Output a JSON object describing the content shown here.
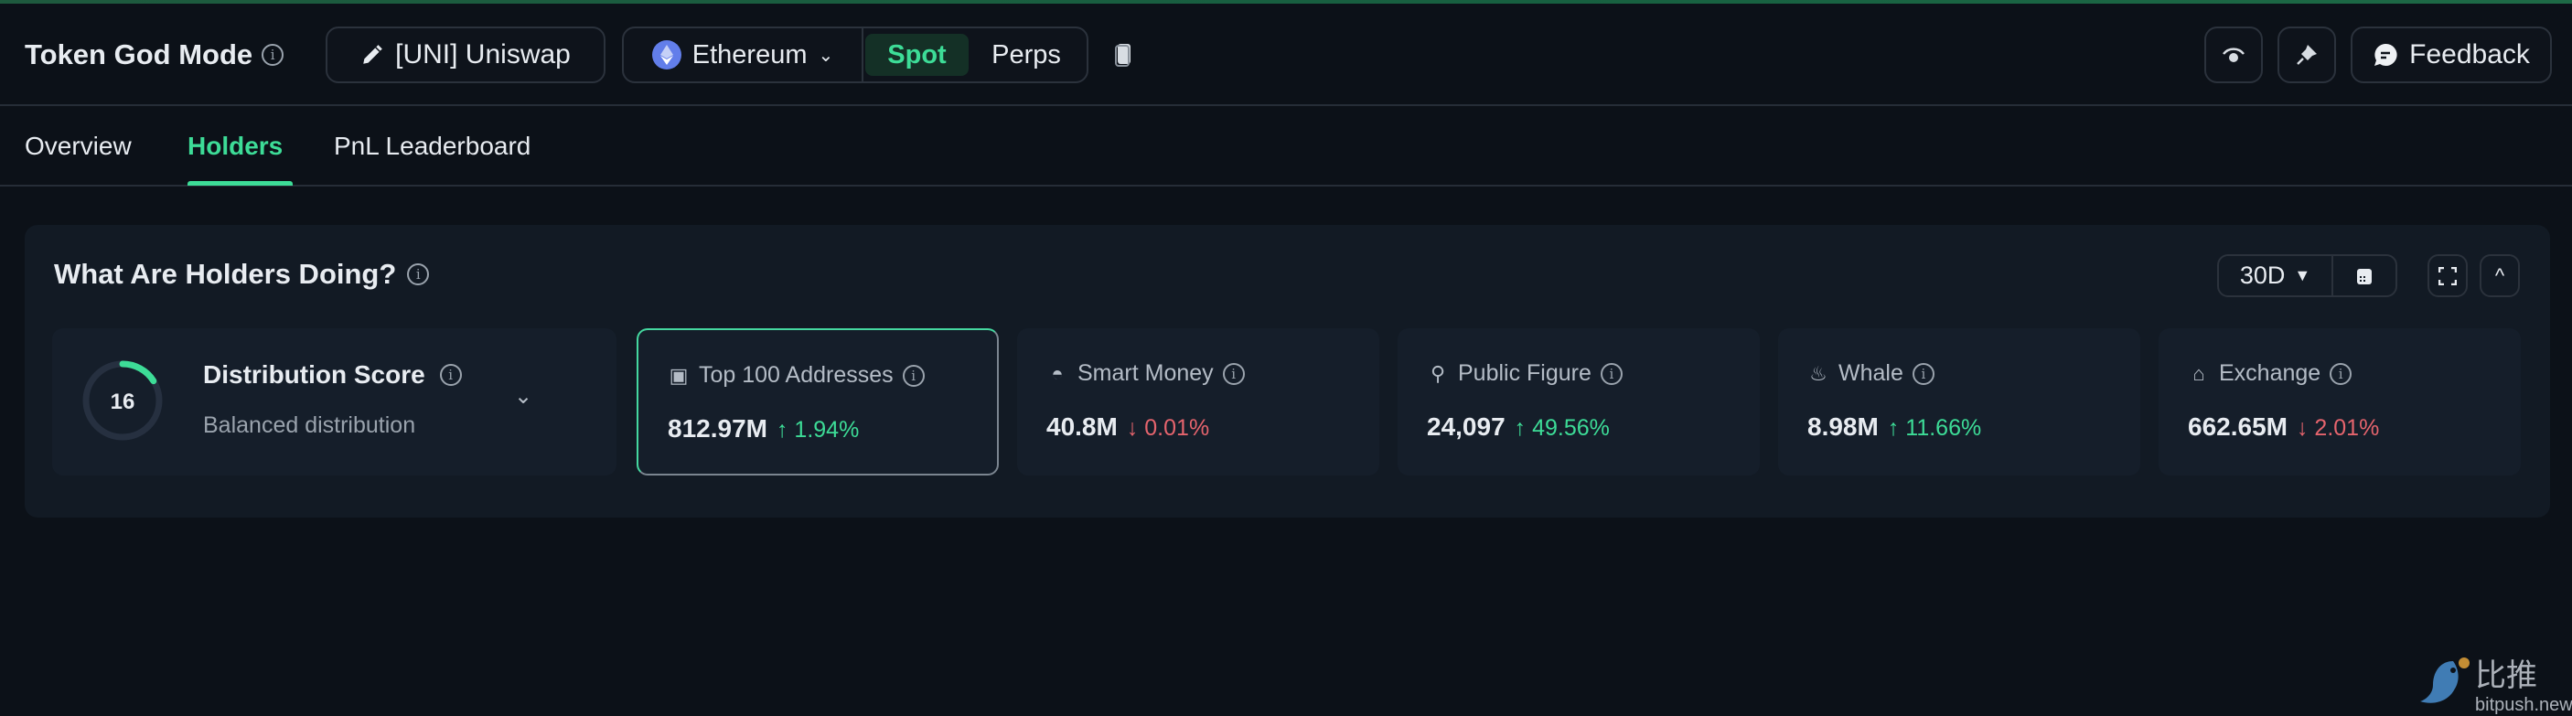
{
  "header": {
    "title": "Token God Mode",
    "token_button": "[UNI] Uniswap",
    "network": "Ethereum",
    "modes": [
      {
        "label": "Spot",
        "active": true
      },
      {
        "label": "Perps",
        "active": false
      }
    ],
    "feedback": "Feedback"
  },
  "tabs": [
    {
      "label": "Overview",
      "active": false
    },
    {
      "label": "Holders",
      "active": true
    },
    {
      "label": "PnL Leaderboard",
      "active": false
    }
  ],
  "panel": {
    "title": "What Are Holders Doing?",
    "period": "30D",
    "distribution": {
      "score": "16",
      "score_fraction": 0.16,
      "title": "Distribution Score",
      "subtitle": "Balanced distribution"
    },
    "cards": [
      {
        "label": "Top 100 Addresses",
        "icon": "wallet-icon",
        "value": "812.97M",
        "change": "1.94%",
        "direction": "up",
        "selected": true
      },
      {
        "label": "Smart Money",
        "icon": "sunglasses-icon",
        "value": "40.8M",
        "change": "0.01%",
        "direction": "down"
      },
      {
        "label": "Public Figure",
        "icon": "spotlight-icon",
        "value": "24,097",
        "change": "49.56%",
        "direction": "up"
      },
      {
        "label": "Whale",
        "icon": "whale-icon",
        "value": "8.98M",
        "change": "11.66%",
        "direction": "up"
      },
      {
        "label": "Exchange",
        "icon": "bank-icon",
        "value": "662.65M",
        "change": "2.01%",
        "direction": "down"
      }
    ]
  },
  "watermark": {
    "cn": "比推",
    "en": "bitpush.news"
  },
  "colors": {
    "accent": "#3ddc97",
    "negative": "#e5646d",
    "background": "#0c1118",
    "panel": "#121a24"
  }
}
